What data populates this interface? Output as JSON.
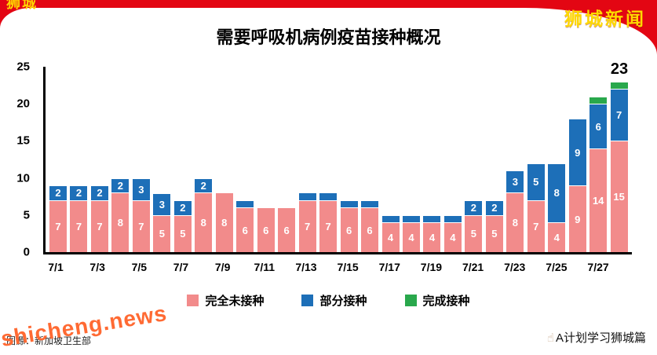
{
  "page": {
    "site_logo": "狮城新闻",
    "site_logo_partial": "狮城新闻",
    "watermark": "shicheng.news",
    "source_note": "图源：新加坡卫生部",
    "credit": "A计划学习狮城篇",
    "credit_icon_glyph": "☝"
  },
  "colors": {
    "background_red": "#e30613",
    "logo_yellow": "#ffd800",
    "unvaccinated_pink": "#f28b8b",
    "partial_blue": "#1d6fb8",
    "full_green": "#29a84c",
    "watermark_orange": "#ff6a33"
  },
  "chart_data": {
    "type": "bar",
    "stacked": true,
    "title": "需要呼吸机病例疫苗接种概况",
    "categories": [
      "7/1",
      "7/2",
      "7/3",
      "7/4",
      "7/5",
      "7/6",
      "7/7",
      "7/8",
      "7/9",
      "7/10",
      "7/11",
      "7/12",
      "7/13",
      "7/14",
      "7/15",
      "7/16",
      "7/17",
      "7/18",
      "7/19",
      "7/20",
      "7/21",
      "7/22",
      "7/23",
      "7/24",
      "7/25",
      "7/26",
      "7/27",
      "7/28"
    ],
    "x_tick_labels_shown": [
      "7/1",
      "7/3",
      "7/5",
      "7/7",
      "7/9",
      "7/11",
      "7/13",
      "7/15",
      "7/17",
      "7/19",
      "7/21",
      "7/23",
      "7/25",
      "7/27"
    ],
    "ylim": [
      0,
      25
    ],
    "yticks": [
      0,
      5,
      10,
      15,
      20,
      25
    ],
    "grid": false,
    "legend_position": "bottom",
    "series": [
      {
        "name": "完全未接种",
        "color": "#f28b8b",
        "values": [
          7,
          7,
          7,
          8,
          7,
          5,
          5,
          8,
          8,
          6,
          6,
          6,
          7,
          7,
          6,
          6,
          4,
          4,
          4,
          4,
          5,
          5,
          8,
          7,
          4,
          9,
          14,
          15
        ]
      },
      {
        "name": "部分接种",
        "color": "#1d6fb8",
        "values": [
          2,
          2,
          2,
          2,
          3,
          3,
          2,
          2,
          0,
          1,
          0,
          0,
          1,
          1,
          1,
          1,
          1,
          1,
          1,
          1,
          2,
          2,
          3,
          5,
          8,
          9,
          6,
          7
        ]
      },
      {
        "name": "完成接种",
        "color": "#29a84c",
        "values": [
          0,
          0,
          0,
          0,
          0,
          0,
          0,
          0,
          0,
          0,
          0,
          0,
          0,
          0,
          0,
          0,
          0,
          0,
          0,
          0,
          0,
          0,
          0,
          0,
          0,
          0,
          1,
          1
        ]
      }
    ],
    "bar_label_min_value": 2,
    "annotations": [
      {
        "text": "23",
        "category": "7/28",
        "y": 23
      }
    ]
  }
}
